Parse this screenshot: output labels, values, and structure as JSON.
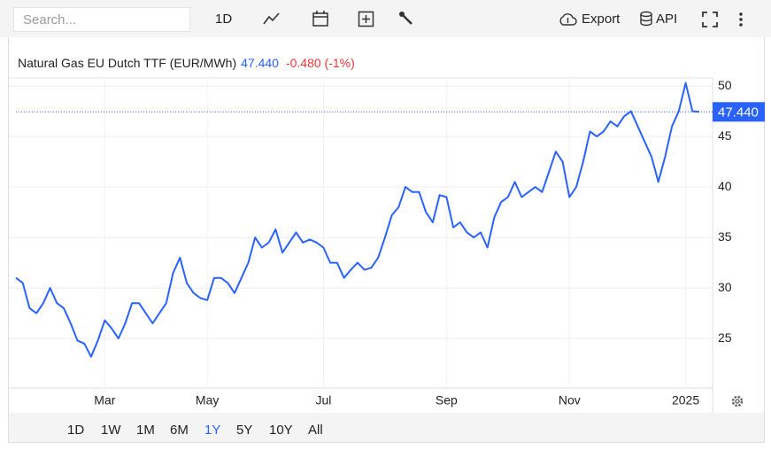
{
  "toolbar": {
    "search": "Search...",
    "interval": "1D",
    "export": "Export",
    "api": "API"
  },
  "chart_data": {
    "type": "line",
    "title": "Natural Gas EU Dutch TTF (EUR/MWh)",
    "price": "47.440",
    "change": "-0.480 (-1%)",
    "categories": [
      null,
      null,
      null,
      null,
      null,
      null,
      null,
      null,
      null,
      null,
      null,
      null,
      null,
      "Mar",
      null,
      null,
      null,
      null,
      null,
      null,
      null,
      null,
      null,
      null,
      null,
      null,
      null,
      null,
      "May",
      null,
      null,
      null,
      null,
      null,
      null,
      null,
      null,
      null,
      null,
      null,
      null,
      null,
      null,
      null,
      null,
      "Jul",
      null,
      null,
      null,
      null,
      null,
      null,
      null,
      null,
      null,
      null,
      null,
      null,
      null,
      null,
      null,
      null,
      null,
      "Sep",
      null,
      null,
      null,
      null,
      null,
      null,
      null,
      null,
      null,
      null,
      null,
      null,
      null,
      null,
      null,
      null,
      null,
      "Nov",
      null,
      null,
      null,
      null,
      null,
      null,
      null,
      null,
      null,
      null,
      null,
      null,
      null,
      null,
      null,
      null,
      "2025",
      null,
      null
    ],
    "series": [
      {
        "color": "#2962ff",
        "values": [
          31,
          30.5,
          28,
          27.5,
          28.5,
          30,
          28.5,
          28,
          26.5,
          24.8,
          24.5,
          23.2,
          24.8,
          26.8,
          26,
          25,
          26.5,
          28.5,
          28.5,
          27.5,
          26.5,
          27.5,
          28.5,
          31.5,
          33,
          30.5,
          29.5,
          29,
          28.8,
          31,
          31,
          30.5,
          29.5,
          31,
          32.5,
          35,
          34,
          34.5,
          35.8,
          33.5,
          34.5,
          35.5,
          34.5,
          34.8,
          34.5,
          34,
          32.5,
          32.5,
          31,
          31.8,
          32.5,
          31.8,
          32,
          33,
          35,
          37.2,
          38,
          40,
          39.5,
          39.5,
          37.5,
          36.5,
          39.2,
          39,
          36,
          36.5,
          35.5,
          35,
          35.5,
          34,
          37,
          38.5,
          39,
          40.5,
          39,
          39.5,
          40,
          39.5,
          41.5,
          43.5,
          42.5,
          39,
          40,
          42.5,
          45.5,
          45,
          45.5,
          46.5,
          46,
          47,
          47.5,
          46,
          44.5,
          43,
          40.5,
          43,
          46,
          47.5,
          50.3,
          47.5,
          47.44
        ]
      }
    ],
    "ylim": [
      20.1,
      50.8
    ],
    "yticks": [
      25,
      30,
      35,
      40,
      45,
      50
    ],
    "grid": true
  },
  "ranges": [
    "1D",
    "1W",
    "1M",
    "6M",
    "1Y",
    "5Y",
    "10Y",
    "All"
  ],
  "selected_range": "1Y"
}
